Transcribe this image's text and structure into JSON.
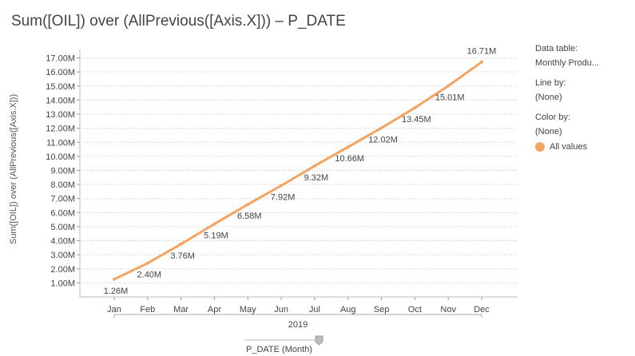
{
  "chart_data": {
    "type": "line",
    "title": "Sum([OIL]) over (AllPrevious([Axis.X])) – P_DATE",
    "ylabel": "Sum([OIL]) over (AllPrevious([Axis.X]))",
    "categories": [
      "Jan",
      "Feb",
      "Mar",
      "Apr",
      "May",
      "Jun",
      "Jul",
      "Aug",
      "Sep",
      "Oct",
      "Nov",
      "Dec"
    ],
    "group_label": "2019",
    "series": [
      {
        "name": "All values",
        "values": [
          1.26,
          2.4,
          3.76,
          5.19,
          6.58,
          7.92,
          9.32,
          10.66,
          12.02,
          13.45,
          15.01,
          16.71
        ],
        "labels": [
          "1.26M",
          "2.40M",
          "3.76M",
          "5.19M",
          "6.58M",
          "7.92M",
          "9.32M",
          "10.66M",
          "12.02M",
          "13.45M",
          "15.01M",
          "16.71M"
        ]
      }
    ],
    "y_ticks": [
      1,
      2,
      3,
      4,
      5,
      6,
      7,
      8,
      9,
      10,
      11,
      12,
      13,
      14,
      15,
      16,
      17
    ],
    "y_tick_labels": [
      "1.00M",
      "2.00M",
      "3.00M",
      "4.00M",
      "5.00M",
      "6.00M",
      "7.00M",
      "8.00M",
      "9.00M",
      "10.00M",
      "11.00M",
      "12.00M",
      "13.00M",
      "14.00M",
      "15.00M",
      "16.00M",
      "17.00M"
    ],
    "ylim": [
      0,
      17.6
    ],
    "grid": true,
    "legend_position": "right",
    "line_color": "#f4a361"
  },
  "legend": {
    "data_table_label": "Data table:",
    "data_table_value": "Monthly Produ...",
    "line_by_label": "Line by:",
    "line_by_value": "(None)",
    "color_by_label": "Color by:",
    "color_by_value": "(None)",
    "item_label": "All values"
  },
  "x_axis_selector": {
    "label": "P_DATE (Month)"
  }
}
